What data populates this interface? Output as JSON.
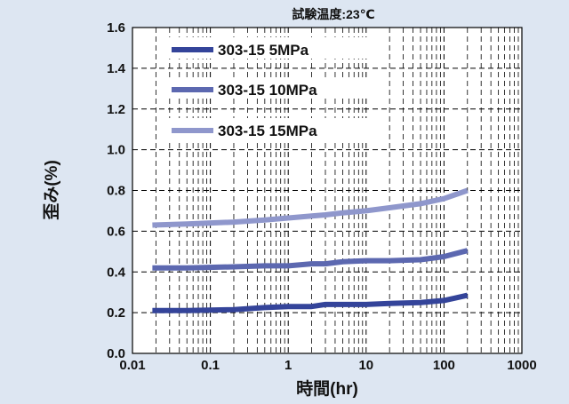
{
  "chart_data": {
    "type": "line",
    "title": "試験温度:23℃",
    "xlabel": "時間(hr)",
    "ylabel": "歪み(%)",
    "xscale": "log",
    "xlim": [
      0.01,
      1000
    ],
    "ylim": [
      0.0,
      1.6
    ],
    "xticks": [
      0.01,
      0.1,
      1,
      10,
      100,
      1000
    ],
    "xtick_labels": [
      "0.01",
      "0.1",
      "1",
      "10",
      "100",
      "1000"
    ],
    "yticks": [
      0.0,
      0.2,
      0.4,
      0.6,
      0.8,
      1.0,
      1.2,
      1.4,
      1.6
    ],
    "ytick_labels": [
      "0.0",
      "0.2",
      "0.4",
      "0.6",
      "0.8",
      "1.0",
      "1.2",
      "1.4",
      "1.6"
    ],
    "grid": true,
    "legend_position": "top-left",
    "series": [
      {
        "name": "303-15 5MPa",
        "color": "#34449a",
        "x": [
          0.018,
          0.05,
          0.2,
          0.5,
          1,
          2,
          3,
          5,
          10,
          20,
          50,
          100,
          200
        ],
        "y": [
          0.21,
          0.21,
          0.215,
          0.225,
          0.23,
          0.23,
          0.24,
          0.24,
          0.24,
          0.245,
          0.25,
          0.26,
          0.285
        ]
      },
      {
        "name": "303-15 10MPa",
        "color": "#5c68b0",
        "x": [
          0.018,
          0.05,
          0.2,
          0.5,
          1,
          2,
          3,
          5,
          10,
          20,
          50,
          100,
          200
        ],
        "y": [
          0.42,
          0.42,
          0.425,
          0.43,
          0.43,
          0.44,
          0.44,
          0.45,
          0.455,
          0.455,
          0.46,
          0.475,
          0.505
        ]
      },
      {
        "name": "303-15 15MPa",
        "color": "#8f97cc",
        "x": [
          0.018,
          0.05,
          0.2,
          0.5,
          1,
          2,
          3,
          5,
          10,
          20,
          50,
          100,
          200
        ],
        "y": [
          0.63,
          0.635,
          0.645,
          0.655,
          0.665,
          0.675,
          0.68,
          0.69,
          0.7,
          0.715,
          0.735,
          0.76,
          0.8
        ]
      }
    ]
  }
}
